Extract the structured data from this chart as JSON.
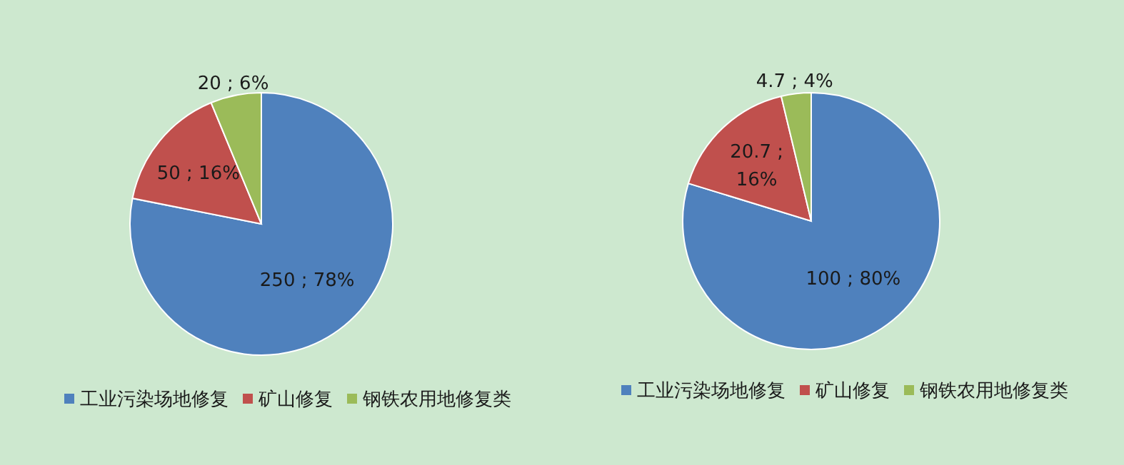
{
  "chart_data": [
    {
      "type": "pie",
      "categories": [
        "工业污染场地修复",
        "矿山修复",
        "钢铁农用地修复类"
      ],
      "values": [
        250,
        50,
        20
      ],
      "colors": [
        "#4f81bd",
        "#c0504d",
        "#9bbb59"
      ],
      "value_labels": [
        "250 ; 78%",
        "50 ; 16%",
        "20 ; 6%"
      ],
      "legend": "bottom"
    },
    {
      "type": "pie",
      "categories": [
        "工业污染场地修复",
        "矿山修复",
        "钢铁农用地修复类"
      ],
      "values": [
        100,
        20.7,
        4.7
      ],
      "colors": [
        "#4f81bd",
        "#c0504d",
        "#9bbb59"
      ],
      "value_labels": [
        "100 ; 80%",
        "20.7 ; 16%",
        "4.7 ; 4%"
      ],
      "legend": "bottom"
    }
  ]
}
